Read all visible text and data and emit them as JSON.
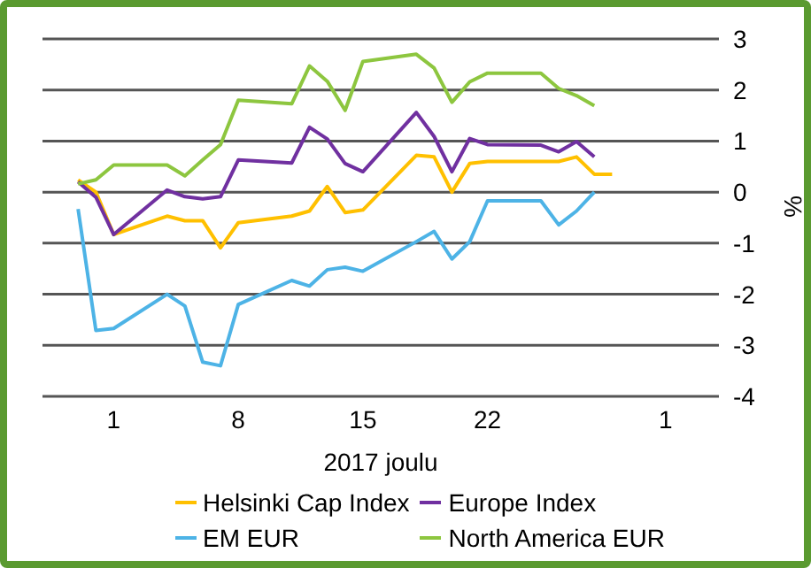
{
  "chart_data": {
    "type": "line",
    "xlabel": "2017 joulu",
    "ylabel": "%",
    "x": [
      "2017-11-29",
      "2017-11-30",
      "2017-12-01",
      "2017-12-04",
      "2017-12-05",
      "2017-12-06",
      "2017-12-07",
      "2017-12-08",
      "2017-12-11",
      "2017-12-12",
      "2017-12-13",
      "2017-12-14",
      "2017-12-15",
      "2017-12-18",
      "2017-12-19",
      "2017-12-20",
      "2017-12-21",
      "2017-12-22",
      "2017-12-25",
      "2017-12-26",
      "2017-12-27",
      "2017-12-28",
      "2017-12-29"
    ],
    "series": [
      {
        "name": "Helsinki Cap Index",
        "color": "#ffc000",
        "values": [
          0.24,
          0,
          -0.83,
          -0.47,
          -0.56,
          -0.56,
          -1.09,
          -0.6,
          -0.47,
          -0.37,
          0.11,
          -0.4,
          -0.35,
          0.72,
          0.69,
          0,
          0.56,
          0.6,
          0.6,
          0.6,
          0.69,
          0.35,
          0.35
        ]
      },
      {
        "name": "Europe Index",
        "color": "#7030a0",
        "values": [
          0.2,
          -0.1,
          -0.83,
          0.04,
          -0.09,
          -0.13,
          -0.09,
          0.63,
          0.57,
          1.27,
          1.04,
          0.56,
          0.4,
          1.56,
          1.09,
          0.4,
          1.05,
          0.93,
          0.92,
          0.79,
          0.99,
          0.69,
          null
        ]
      },
      {
        "name": "EM EUR",
        "color": "#4db3e6",
        "values": [
          -0.33,
          -2.71,
          -2.67,
          -2.0,
          -2.23,
          -3.33,
          -3.4,
          -2.2,
          -1.73,
          -1.84,
          -1.52,
          -1.47,
          -1.55,
          -0.97,
          -0.77,
          -1.31,
          -0.97,
          -0.17,
          -0.17,
          -0.64,
          -0.37,
          0.0,
          null
        ]
      },
      {
        "name": "North America EUR",
        "color": "#8dc63f",
        "values": [
          0.16,
          0.24,
          0.53,
          0.53,
          0.32,
          0.63,
          0.93,
          1.8,
          1.73,
          2.47,
          2.17,
          1.6,
          2.56,
          2.7,
          2.43,
          1.76,
          2.16,
          2.33,
          2.33,
          2.03,
          1.89,
          1.69,
          null
        ]
      }
    ],
    "xlim": [
      "2017-11-27",
      "2018-01-04"
    ],
    "xticks": [
      {
        "value": "2017-12-01",
        "label": "1"
      },
      {
        "value": "2017-12-08",
        "label": "8"
      },
      {
        "value": "2017-12-15",
        "label": "15"
      },
      {
        "value": "2017-12-22",
        "label": "22"
      },
      {
        "value": "2018-01-01",
        "label": "1"
      }
    ],
    "ylim": [
      -4,
      3
    ],
    "yticks": [
      -4,
      -3,
      -2,
      -1,
      0,
      1,
      2,
      3
    ],
    "grid": "y",
    "legend": "bottom",
    "marker": "none",
    "line_style": "solid"
  }
}
